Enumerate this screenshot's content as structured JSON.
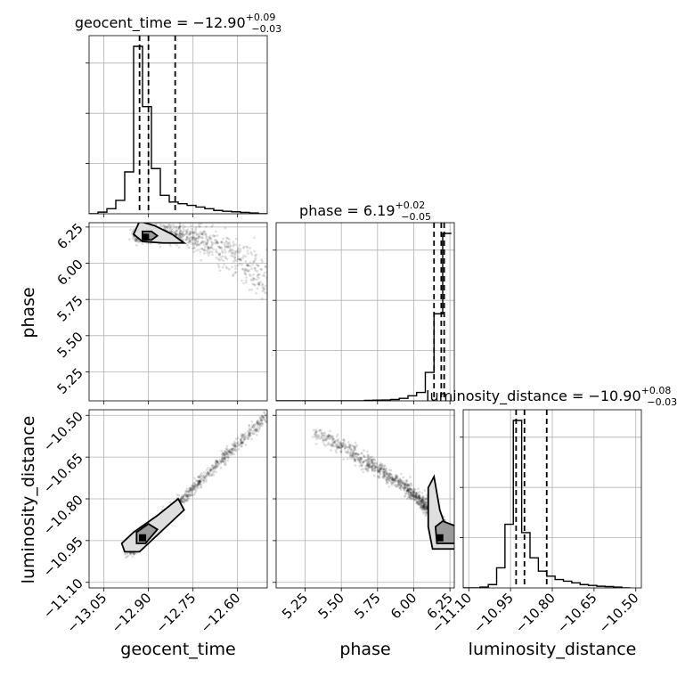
{
  "chart_data": {
    "type": "corner",
    "parameters": [
      "geocent_time",
      "phase",
      "luminosity_distance"
    ],
    "axis_labels": [
      "geocent_time",
      "phase",
      "luminosity_distance"
    ],
    "axis_ranges": {
      "geocent_time": [
        -13.1,
        -12.5
      ],
      "phase": [
        5.05,
        6.28
      ],
      "luminosity_distance": [
        -11.12,
        -10.48
      ]
    },
    "tick_labels": {
      "geocent_time": [
        "−13.05",
        "−12.90",
        "−12.75",
        "−12.60"
      ],
      "phase_x": [
        "5.25",
        "5.50",
        "5.75",
        "6.00",
        "6.25"
      ],
      "phase_y": [
        "5.25",
        "5.50",
        "5.75",
        "6.00",
        "6.25"
      ],
      "luminosity_distance": [
        "−11.10",
        "−10.95",
        "−10.80",
        "−10.65",
        "−10.50"
      ]
    },
    "tick_values": {
      "geocent_time": [
        -13.05,
        -12.9,
        -12.75,
        -12.6
      ],
      "phase": [
        5.25,
        5.5,
        5.75,
        6.0,
        6.25
      ],
      "luminosity_distance": [
        -11.1,
        -10.95,
        -10.8,
        -10.65,
        -10.5
      ]
    },
    "titles": {
      "geocent_time": {
        "name": "geocent_time",
        "median": "−12.90",
        "plus": "+0.09",
        "minus": "−0.03"
      },
      "phase": {
        "name": "phase",
        "median": "6.19",
        "plus": "+0.02",
        "minus": "−0.05"
      },
      "luminosity_distance": {
        "name": "luminosity_distance",
        "median": "−10.90",
        "plus": "+0.08",
        "minus": "−0.03"
      }
    },
    "quantiles": {
      "geocent_time": [
        -12.93,
        -12.9,
        -12.81
      ],
      "phase": [
        6.14,
        6.19,
        6.21
      ],
      "luminosity_distance": [
        -10.93,
        -10.9,
        -10.82
      ]
    },
    "histograms": {
      "geocent_time": {
        "bin_edges": [
          -13.1,
          -13.07,
          -13.04,
          -13.01,
          -12.98,
          -12.95,
          -12.92,
          -12.89,
          -12.86,
          -12.83,
          -12.8,
          -12.77,
          -12.74,
          -12.71,
          -12.68,
          -12.65,
          -12.62,
          -12.59,
          -12.56,
          -12.53,
          -12.5
        ],
        "counts": [
          0,
          1,
          3,
          8,
          25,
          100,
          64,
          27,
          11,
          7,
          6,
          5,
          4,
          3,
          2,
          1.5,
          1.2,
          0.8,
          0.5,
          0
        ]
      },
      "phase": {
        "bin_edges": [
          5.0,
          5.06,
          5.12,
          5.18,
          5.24,
          5.3,
          5.36,
          5.42,
          5.48,
          5.54,
          5.6,
          5.66,
          5.72,
          5.78,
          5.84,
          5.9,
          5.96,
          6.02,
          6.08,
          6.14,
          6.2,
          6.26
        ],
        "counts": [
          0,
          0,
          0,
          0,
          0,
          0,
          0,
          0,
          0,
          0,
          0,
          0.3,
          0.4,
          0.5,
          0.8,
          1.5,
          3,
          5,
          17,
          52,
          100
        ]
      },
      "luminosity_distance": {
        "bin_edges": [
          -11.12,
          -11.09,
          -11.06,
          -11.03,
          -11.0,
          -10.97,
          -10.94,
          -10.91,
          -10.88,
          -10.85,
          -10.82,
          -10.79,
          -10.76,
          -10.73,
          -10.7,
          -10.67,
          -10.64,
          -10.61,
          -10.58,
          -10.55,
          -10.52
        ],
        "counts": [
          0,
          0,
          0.5,
          2,
          12,
          38,
          100,
          33,
          18,
          10,
          7,
          5,
          4,
          3,
          2,
          1.5,
          1,
          0.8,
          0.5,
          0
        ]
      }
    },
    "grid": true,
    "contour_levels": 2
  }
}
